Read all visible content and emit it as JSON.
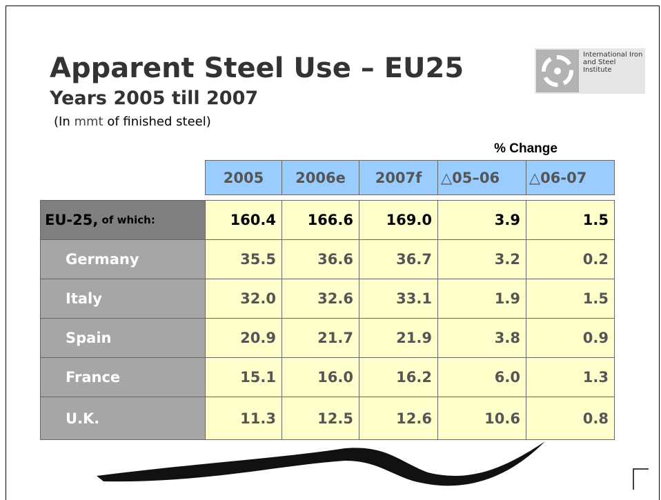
{
  "header": {
    "title": "Apparent Steel Use – EU25",
    "subtitle": "Years 2005 till 2007",
    "note_prefix": "(In ",
    "note_unit": "mmt",
    "note_suffix": " of finished steel)"
  },
  "logo": {
    "text": "International Iron and Steel Institute"
  },
  "table": {
    "group_label": "% Change",
    "columns": [
      "2005",
      "2006e",
      "2007f",
      "△05–06",
      "△06-07"
    ],
    "rows": [
      {
        "label": "EU-25,",
        "label_suffix": " of which:",
        "cells": [
          "160.4",
          "166.6",
          "169.0",
          "3.9",
          "1.5"
        ]
      },
      {
        "label": "Germany",
        "cells": [
          "35.5",
          "36.6",
          "36.7",
          "3.2",
          "0.2"
        ]
      },
      {
        "label": "Italy",
        "cells": [
          "32.0",
          "32.6",
          "33.1",
          "1.9",
          "1.5"
        ]
      },
      {
        "label": "Spain",
        "cells": [
          "20.9",
          "21.7",
          "21.9",
          "3.8",
          "0.9"
        ]
      },
      {
        "label": "France",
        "cells": [
          "15.1",
          "16.0",
          "16.2",
          "6.0",
          "1.3"
        ]
      },
      {
        "label": "U.K.",
        "cells": [
          "11.3",
          "12.5",
          "12.6",
          "10.6",
          "0.8"
        ]
      }
    ]
  }
}
